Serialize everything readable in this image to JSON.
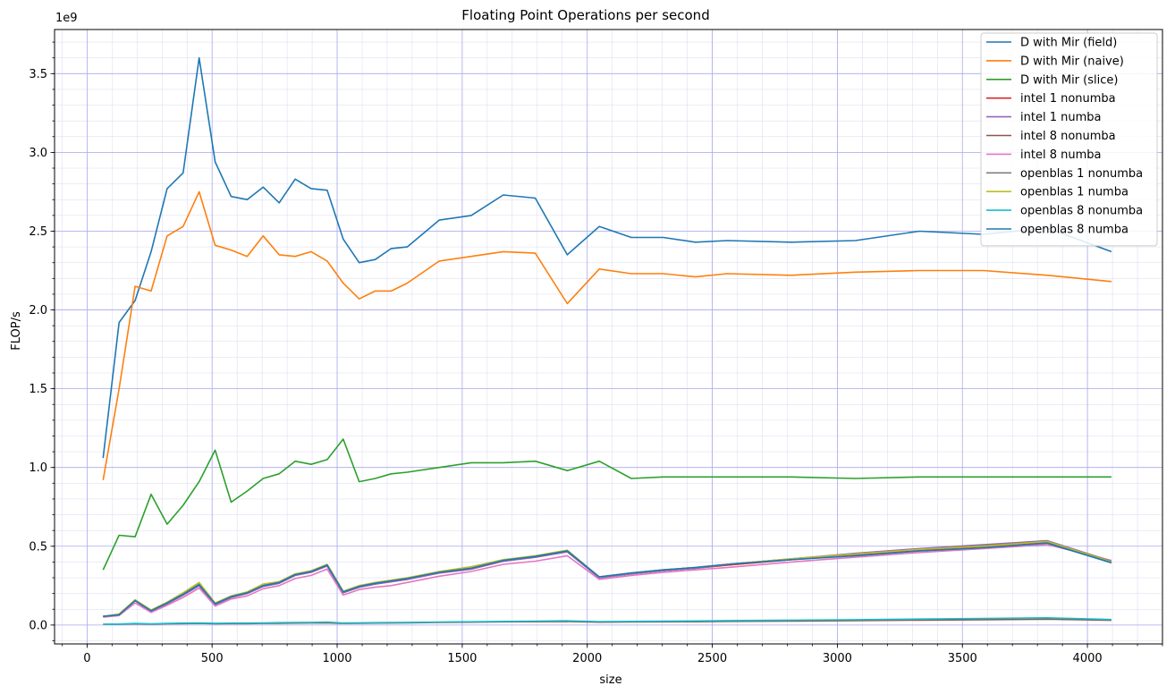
{
  "chart_data": {
    "type": "line",
    "title": "Floating Point Operations per second",
    "xlabel": "size",
    "ylabel": "FLOP/s",
    "y_offset_label": "1e9",
    "xlim": [
      -130,
      4300
    ],
    "ylim": [
      -0.12,
      3.78
    ],
    "y_scale": 1000000000,
    "xticks": [
      0,
      500,
      1000,
      1500,
      2000,
      2500,
      3000,
      3500,
      4000
    ],
    "yticks": [
      0.0,
      0.5,
      1.0,
      1.5,
      2.0,
      2.5,
      3.0,
      3.5
    ],
    "ytick_labels": [
      "0.0",
      "0.5",
      "1.0",
      "1.5",
      "2.0",
      "2.5",
      "3.0",
      "3.5"
    ],
    "grid": true,
    "minor_grid": true,
    "legend_position": "top-right",
    "x": [
      64,
      128,
      192,
      256,
      320,
      384,
      448,
      512,
      576,
      640,
      704,
      768,
      832,
      896,
      960,
      1024,
      1088,
      1152,
      1216,
      1280,
      1408,
      1536,
      1664,
      1792,
      1920,
      2048,
      2176,
      2304,
      2432,
      2560,
      2816,
      3072,
      3328,
      3584,
      3840,
      4096
    ],
    "series": [
      {
        "name": "D with Mir (field)",
        "color": "#1f77b4",
        "values": [
          1.06,
          1.92,
          2.06,
          2.37,
          2.77,
          2.87,
          3.6,
          2.94,
          2.72,
          2.7,
          2.78,
          2.68,
          2.83,
          2.77,
          2.76,
          2.45,
          2.3,
          2.32,
          2.39,
          2.4,
          2.57,
          2.6,
          2.73,
          2.71,
          2.35,
          2.53,
          2.46,
          2.46,
          2.43,
          2.44,
          2.43,
          2.44,
          2.5,
          2.48,
          2.52,
          2.37
        ]
      },
      {
        "name": "D with Mir (naive)",
        "color": "#ff7f0e",
        "values": [
          0.92,
          1.5,
          2.15,
          2.12,
          2.47,
          2.53,
          2.75,
          2.41,
          2.38,
          2.34,
          2.47,
          2.35,
          2.34,
          2.37,
          2.31,
          2.17,
          2.07,
          2.12,
          2.12,
          2.17,
          2.31,
          2.34,
          2.37,
          2.36,
          2.04,
          2.26,
          2.23,
          2.23,
          2.21,
          2.23,
          2.22,
          2.24,
          2.25,
          2.25,
          2.22,
          2.18
        ]
      },
      {
        "name": "D with Mir (slice)",
        "color": "#2ca02c",
        "values": [
          0.35,
          0.57,
          0.56,
          0.83,
          0.64,
          0.76,
          0.91,
          1.11,
          0.78,
          0.85,
          0.93,
          0.96,
          1.04,
          1.02,
          1.05,
          1.18,
          0.91,
          0.93,
          0.96,
          0.97,
          1.0,
          1.03,
          1.03,
          1.04,
          0.98,
          1.04,
          0.93,
          0.94,
          0.94,
          0.94,
          0.94,
          0.93,
          0.94,
          0.94,
          0.94,
          0.94
        ]
      },
      {
        "name": "intel 1 nonumba",
        "color": "#d62728",
        "values": [
          0.055,
          0.065,
          0.155,
          0.085,
          0.135,
          0.19,
          0.25,
          0.13,
          0.175,
          0.2,
          0.245,
          0.265,
          0.315,
          0.335,
          0.375,
          0.205,
          0.24,
          0.26,
          0.275,
          0.29,
          0.33,
          0.355,
          0.405,
          0.43,
          0.465,
          0.3,
          0.325,
          0.345,
          0.36,
          0.38,
          0.415,
          0.445,
          0.475,
          0.495,
          0.525,
          0.4
        ]
      },
      {
        "name": "intel 1 numba",
        "color": "#9467bd",
        "values": [
          0.055,
          0.065,
          0.155,
          0.085,
          0.135,
          0.19,
          0.25,
          0.13,
          0.175,
          0.2,
          0.245,
          0.265,
          0.315,
          0.335,
          0.375,
          0.205,
          0.24,
          0.26,
          0.275,
          0.29,
          0.33,
          0.355,
          0.405,
          0.43,
          0.465,
          0.3,
          0.325,
          0.345,
          0.36,
          0.385,
          0.42,
          0.455,
          0.485,
          0.51,
          0.535,
          0.405
        ]
      },
      {
        "name": "intel 8 nonumba",
        "color": "#8c564b",
        "values": [
          0.005,
          0.005,
          0.008,
          0.006,
          0.008,
          0.009,
          0.01,
          0.008,
          0.009,
          0.009,
          0.01,
          0.011,
          0.012,
          0.013,
          0.014,
          0.01,
          0.011,
          0.012,
          0.013,
          0.014,
          0.016,
          0.018,
          0.02,
          0.021,
          0.022,
          0.018,
          0.019,
          0.02,
          0.021,
          0.023,
          0.025,
          0.028,
          0.031,
          0.034,
          0.037,
          0.03
        ]
      },
      {
        "name": "intel 8 numba",
        "color": "#e377c2",
        "values": [
          0.05,
          0.06,
          0.14,
          0.08,
          0.125,
          0.175,
          0.235,
          0.12,
          0.165,
          0.185,
          0.23,
          0.25,
          0.295,
          0.315,
          0.355,
          0.19,
          0.225,
          0.24,
          0.25,
          0.27,
          0.31,
          0.34,
          0.385,
          0.405,
          0.44,
          0.29,
          0.315,
          0.335,
          0.35,
          0.365,
          0.4,
          0.43,
          0.46,
          0.485,
          0.51,
          0.41
        ]
      },
      {
        "name": "openblas 1 nonumba",
        "color": "#7f7f7f",
        "values": [
          0.055,
          0.065,
          0.16,
          0.09,
          0.14,
          0.2,
          0.26,
          0.135,
          0.18,
          0.205,
          0.25,
          0.27,
          0.32,
          0.34,
          0.38,
          0.21,
          0.245,
          0.265,
          0.28,
          0.295,
          0.335,
          0.36,
          0.41,
          0.435,
          0.47,
          0.305,
          0.33,
          0.35,
          0.365,
          0.385,
          0.42,
          0.45,
          0.48,
          0.505,
          0.53,
          0.405
        ]
      },
      {
        "name": "openblas 1 numba",
        "color": "#bcbd22",
        "values": [
          0.055,
          0.07,
          0.16,
          0.095,
          0.145,
          0.205,
          0.27,
          0.14,
          0.185,
          0.21,
          0.26,
          0.275,
          0.325,
          0.345,
          0.385,
          0.215,
          0.25,
          0.27,
          0.285,
          0.3,
          0.34,
          0.37,
          0.415,
          0.44,
          0.475,
          0.305,
          0.33,
          0.35,
          0.365,
          0.385,
          0.42,
          0.45,
          0.48,
          0.5,
          0.53,
          0.4
        ]
      },
      {
        "name": "openblas 8 nonumba",
        "color": "#17becf",
        "values": [
          0.005,
          0.006,
          0.01,
          0.007,
          0.01,
          0.012,
          0.013,
          0.011,
          0.012,
          0.012,
          0.013,
          0.015,
          0.016,
          0.017,
          0.019,
          0.013,
          0.014,
          0.015,
          0.016,
          0.017,
          0.019,
          0.021,
          0.023,
          0.025,
          0.027,
          0.022,
          0.023,
          0.024,
          0.026,
          0.028,
          0.031,
          0.034,
          0.038,
          0.042,
          0.046,
          0.035
        ]
      },
      {
        "name": "openblas 8 numba",
        "color": "#1f77b4",
        "values": [
          0.055,
          0.065,
          0.155,
          0.09,
          0.14,
          0.195,
          0.255,
          0.135,
          0.18,
          0.205,
          0.25,
          0.27,
          0.32,
          0.34,
          0.38,
          0.21,
          0.245,
          0.265,
          0.28,
          0.295,
          0.335,
          0.36,
          0.41,
          0.435,
          0.47,
          0.305,
          0.33,
          0.35,
          0.365,
          0.385,
          0.415,
          0.44,
          0.47,
          0.49,
          0.52,
          0.395
        ]
      }
    ]
  }
}
